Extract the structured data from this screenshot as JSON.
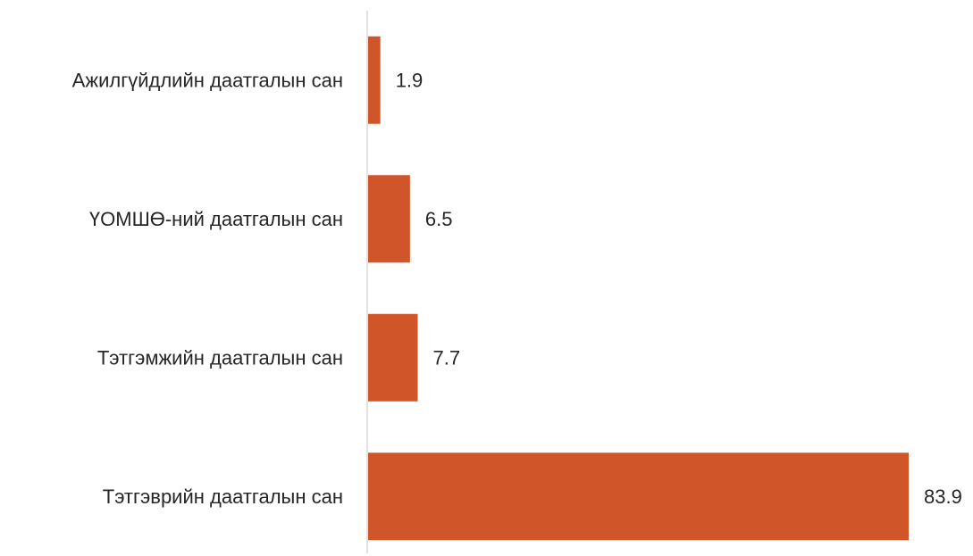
{
  "chart_data": {
    "type": "bar",
    "orientation": "horizontal",
    "categories": [
      "Ажилгүйдлийн даатгалын сан",
      "ҮОМШӨ-ний даатгалын сан",
      "Тэтгэмжийн даатгалын сан",
      "Тэтгэврийн даатгалын сан"
    ],
    "values": [
      1.9,
      6.5,
      7.7,
      83.9
    ],
    "data_labels": [
      "1.9",
      "6.5",
      "7.7",
      "83.9"
    ],
    "title": "",
    "xlabel": "",
    "ylabel": "",
    "xlim": [
      0,
      83.9
    ],
    "grid": false,
    "legend": "none",
    "bar_color": "#D0562A",
    "axis_color": "#D9D9D9"
  }
}
